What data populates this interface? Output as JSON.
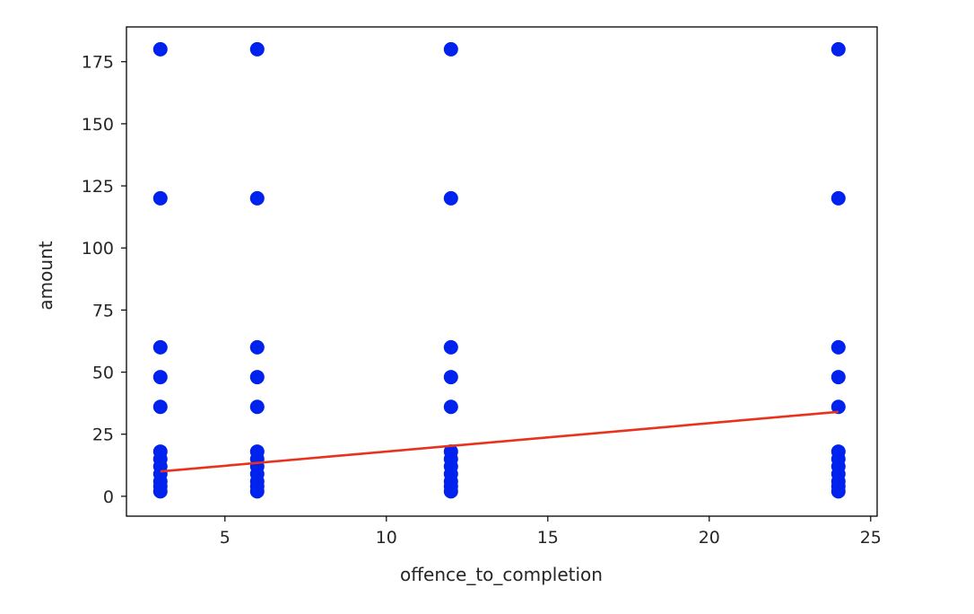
{
  "chart_data": {
    "type": "scatter",
    "title": "",
    "xlabel": "offence_to_completion",
    "ylabel": "amount",
    "xlim": [
      1.95,
      25.2
    ],
    "ylim": [
      -8,
      189
    ],
    "xticks": [
      5,
      10,
      15,
      20,
      25
    ],
    "yticks": [
      0,
      25,
      50,
      75,
      100,
      125,
      150,
      175
    ],
    "grid": false,
    "legend": "none",
    "series": [
      {
        "kind": "scatter",
        "color": "#0022ee",
        "points": [
          [
            3,
            180
          ],
          [
            3,
            120
          ],
          [
            3,
            60
          ],
          [
            3,
            48
          ],
          [
            3,
            36
          ],
          [
            3,
            18
          ],
          [
            3,
            15
          ],
          [
            3,
            12
          ],
          [
            3,
            9
          ],
          [
            3,
            6
          ],
          [
            3,
            4
          ],
          [
            3,
            2
          ],
          [
            6,
            180
          ],
          [
            6,
            120
          ],
          [
            6,
            60
          ],
          [
            6,
            48
          ],
          [
            6,
            36
          ],
          [
            6,
            18
          ],
          [
            6,
            15
          ],
          [
            6,
            12
          ],
          [
            6,
            9
          ],
          [
            6,
            6
          ],
          [
            6,
            4
          ],
          [
            6,
            2
          ],
          [
            12,
            180
          ],
          [
            12,
            120
          ],
          [
            12,
            60
          ],
          [
            12,
            48
          ],
          [
            12,
            36
          ],
          [
            12,
            18
          ],
          [
            12,
            15
          ],
          [
            12,
            12
          ],
          [
            12,
            9
          ],
          [
            12,
            6
          ],
          [
            12,
            4
          ],
          [
            12,
            2
          ],
          [
            24,
            180
          ],
          [
            24,
            120
          ],
          [
            24,
            60
          ],
          [
            24,
            48
          ],
          [
            24,
            36
          ],
          [
            24,
            18
          ],
          [
            24,
            15
          ],
          [
            24,
            12
          ],
          [
            24,
            9
          ],
          [
            24,
            6
          ],
          [
            24,
            4
          ],
          [
            24,
            2
          ]
        ]
      },
      {
        "kind": "line",
        "color": "#e8321e",
        "points": [
          [
            3,
            10
          ],
          [
            24,
            34
          ]
        ]
      }
    ]
  }
}
